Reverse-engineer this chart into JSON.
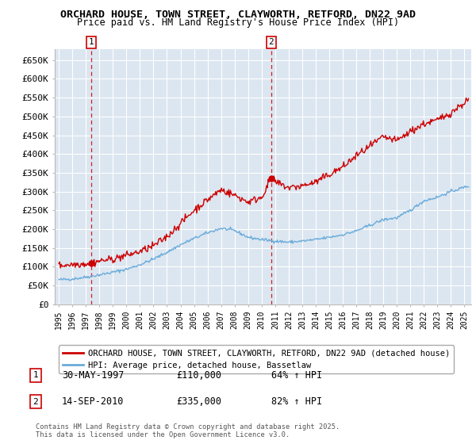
{
  "title1": "ORCHARD HOUSE, TOWN STREET, CLAYWORTH, RETFORD, DN22 9AD",
  "title2": "Price paid vs. HM Land Registry's House Price Index (HPI)",
  "ylabel_ticks": [
    "£0",
    "£50K",
    "£100K",
    "£150K",
    "£200K",
    "£250K",
    "£300K",
    "£350K",
    "£400K",
    "£450K",
    "£500K",
    "£550K",
    "£600K",
    "£650K"
  ],
  "ytick_values": [
    0,
    50000,
    100000,
    150000,
    200000,
    250000,
    300000,
    350000,
    400000,
    450000,
    500000,
    550000,
    600000,
    650000
  ],
  "ylim": [
    0,
    680000
  ],
  "xlim_start": 1994.7,
  "xlim_end": 2025.5,
  "background_color": "#dce6f1",
  "grid_color": "#ffffff",
  "red_color": "#cc0000",
  "blue_color": "#6aacdb",
  "sale1_x": 1997.41,
  "sale1_y": 110000,
  "sale1_label": "1",
  "sale2_x": 2010.71,
  "sale2_y": 335000,
  "sale2_label": "2",
  "legend_label_red": "ORCHARD HOUSE, TOWN STREET, CLAYWORTH, RETFORD, DN22 9AD (detached house)",
  "legend_label_blue": "HPI: Average price, detached house, Bassetlaw",
  "table_data": [
    {
      "num": "1",
      "date": "30-MAY-1997",
      "price": "£110,000",
      "hpi": "64% ↑ HPI"
    },
    {
      "num": "2",
      "date": "14-SEP-2010",
      "price": "£335,000",
      "hpi": "82% ↑ HPI"
    }
  ],
  "footer": "Contains HM Land Registry data © Crown copyright and database right 2025.\nThis data is licensed under the Open Government Licence v3.0.",
  "xticks": [
    1995,
    1996,
    1997,
    1998,
    1999,
    2000,
    2001,
    2002,
    2003,
    2004,
    2005,
    2006,
    2007,
    2008,
    2009,
    2010,
    2011,
    2012,
    2013,
    2014,
    2015,
    2016,
    2017,
    2018,
    2019,
    2020,
    2021,
    2022,
    2023,
    2024,
    2025
  ]
}
